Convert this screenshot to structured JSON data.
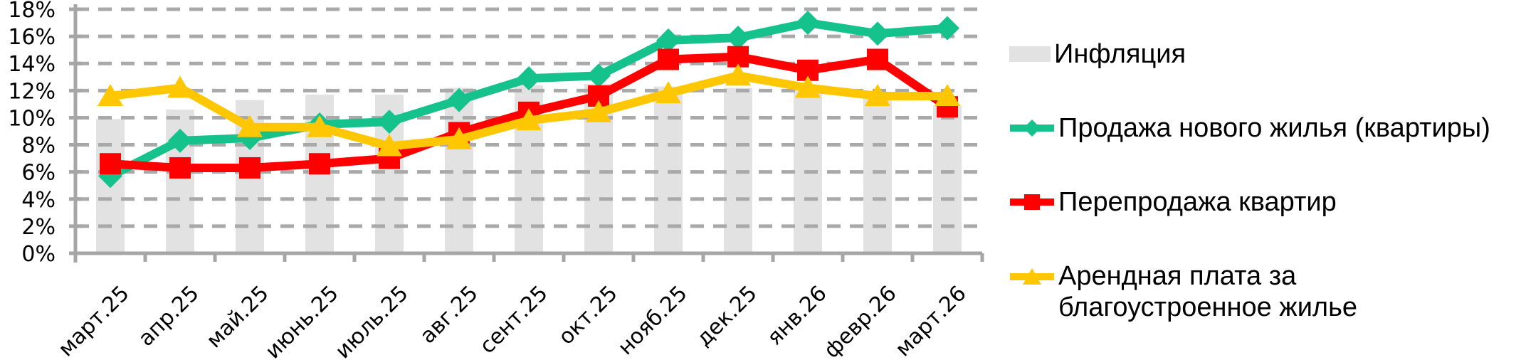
{
  "chart_data": {
    "type": "combo",
    "title": "",
    "categories": [
      "март.25",
      "апр.25",
      "май.25",
      "июнь.25",
      "июль.25",
      "авг.25",
      "сент.25",
      "окт.25",
      "нояб.25",
      "дек.25",
      "янв.26",
      "февр.26",
      "март.26"
    ],
    "y_tick_labels": [
      "0%",
      "2%",
      "4%",
      "6%",
      "8%",
      "10%",
      "12%",
      "14%",
      "16%",
      "18%"
    ],
    "ylim": [
      0,
      18
    ],
    "ytick_step": 2,
    "grid": "horizontal-dashed",
    "legend_position": "right",
    "series": [
      {
        "name": "Инфляция",
        "type": "bar",
        "color": "#E2E2E2",
        "values": [
          9.9,
          10.6,
          11.3,
          11.7,
          11.7,
          12.2,
          12.4,
          12.5,
          12.3,
          12.2,
          12.1,
          11.4,
          10.9
        ]
      },
      {
        "name": "Продажа нового жилья (квартиры)",
        "type": "line",
        "marker": "diamond",
        "color": "#16C28C",
        "values": [
          5.7,
          8.3,
          8.5,
          9.5,
          9.7,
          11.3,
          12.9,
          13.1,
          15.7,
          15.9,
          17.0,
          16.2,
          16.6
        ]
      },
      {
        "name": "Перепродажа квартир",
        "type": "line",
        "marker": "square",
        "color": "#FF0000",
        "values": [
          6.6,
          6.3,
          6.3,
          6.6,
          7.0,
          8.9,
          10.4,
          11.6,
          14.3,
          14.5,
          13.5,
          14.3,
          10.8
        ]
      },
      {
        "name": "Арендная плата за благоустроенное жилье",
        "type": "line",
        "marker": "triangle",
        "color": "#FFC602",
        "values": [
          11.6,
          12.2,
          9.3,
          9.3,
          7.9,
          8.4,
          9.8,
          10.4,
          11.8,
          13.1,
          12.2,
          11.6,
          11.6
        ]
      }
    ]
  },
  "colors": {
    "grid": "#A9A9A9",
    "axis": "#A6A6A6",
    "text": "#000000",
    "plot_bg": "#FFFFFF"
  }
}
